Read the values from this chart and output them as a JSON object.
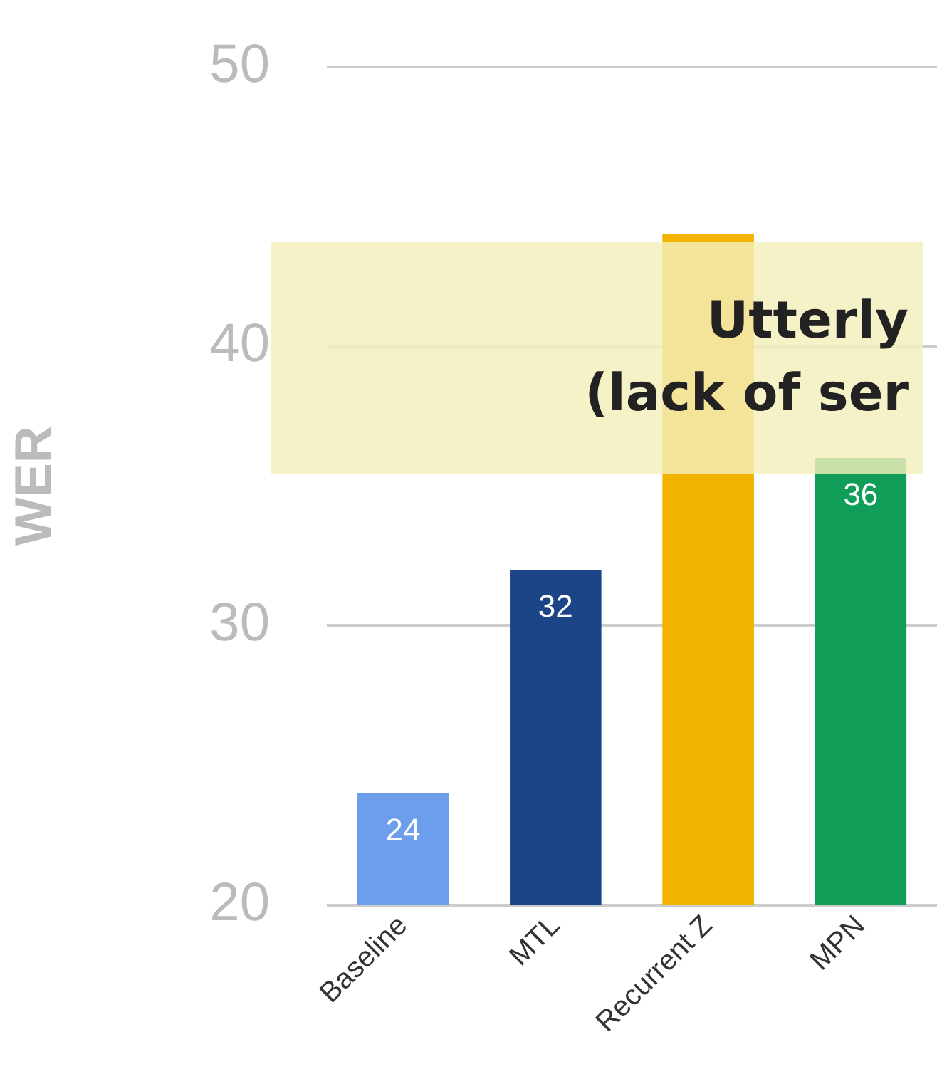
{
  "chart_data": {
    "type": "bar",
    "ylabel": "WER",
    "categories": [
      "Baseline",
      "MTL",
      "Recurrent Z",
      "MPN"
    ],
    "values": [
      24,
      32,
      44,
      36
    ],
    "colors": [
      "#6d9eeb",
      "#1c4587",
      "#f1b300",
      "#0f9d58"
    ],
    "value_labels": [
      "24",
      "32",
      null,
      "36"
    ],
    "ylim": [
      20,
      50
    ],
    "yticks": [
      20,
      30,
      40,
      50
    ],
    "grid": "y",
    "legend": false,
    "annotations": [
      "Utterly\n(lack of ser"
    ]
  }
}
